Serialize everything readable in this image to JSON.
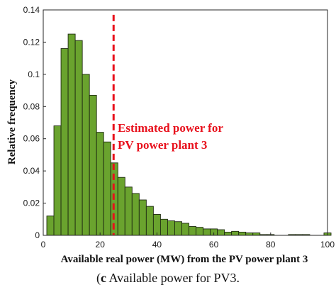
{
  "chart_data": {
    "type": "bar",
    "ylabel": "Relative frequency",
    "xlabel": "Available real power (MW) from the PV power plant 3",
    "xlim": [
      0,
      100
    ],
    "ylim": [
      0,
      0.14
    ],
    "xticks": [
      "0",
      "20",
      "40",
      "60",
      "80",
      "100"
    ],
    "yticks": [
      "0",
      "0.02",
      "0.04",
      "0.06",
      "0.08",
      "0.1",
      "0.12",
      "0.14"
    ],
    "bin_width": 2.5,
    "x": [
      2.5,
      5,
      7.5,
      10,
      12.5,
      15,
      17.5,
      20,
      22.5,
      25,
      27.5,
      30,
      32.5,
      35,
      37.5,
      40,
      42.5,
      45,
      47.5,
      50,
      52.5,
      55,
      57.5,
      60,
      62.5,
      65,
      67.5,
      70,
      72.5,
      75,
      77.5,
      80,
      82.5,
      85,
      87.5,
      90,
      92.5,
      95,
      97.5,
      100
    ],
    "values": [
      0.012,
      0.068,
      0.116,
      0.125,
      0.121,
      0.1,
      0.087,
      0.064,
      0.058,
      0.045,
      0.036,
      0.03,
      0.026,
      0.022,
      0.018,
      0.013,
      0.01,
      0.009,
      0.0085,
      0.0075,
      0.0055,
      0.005,
      0.004,
      0.004,
      0.0035,
      0.002,
      0.0025,
      0.002,
      0.0015,
      0.0015,
      0.0005,
      0.0005,
      0,
      0,
      0.0005,
      0.0005,
      0.0005,
      0,
      0,
      0.0015
    ],
    "bar_color": "#6aa32e",
    "reference_line": {
      "x": 25,
      "color": "#e8101c",
      "style": "dashed",
      "label_lines": [
        "Estimated power for",
        "PV power plant 3"
      ]
    }
  },
  "caption": {
    "label": "c",
    "text": " Available power for PV3."
  }
}
